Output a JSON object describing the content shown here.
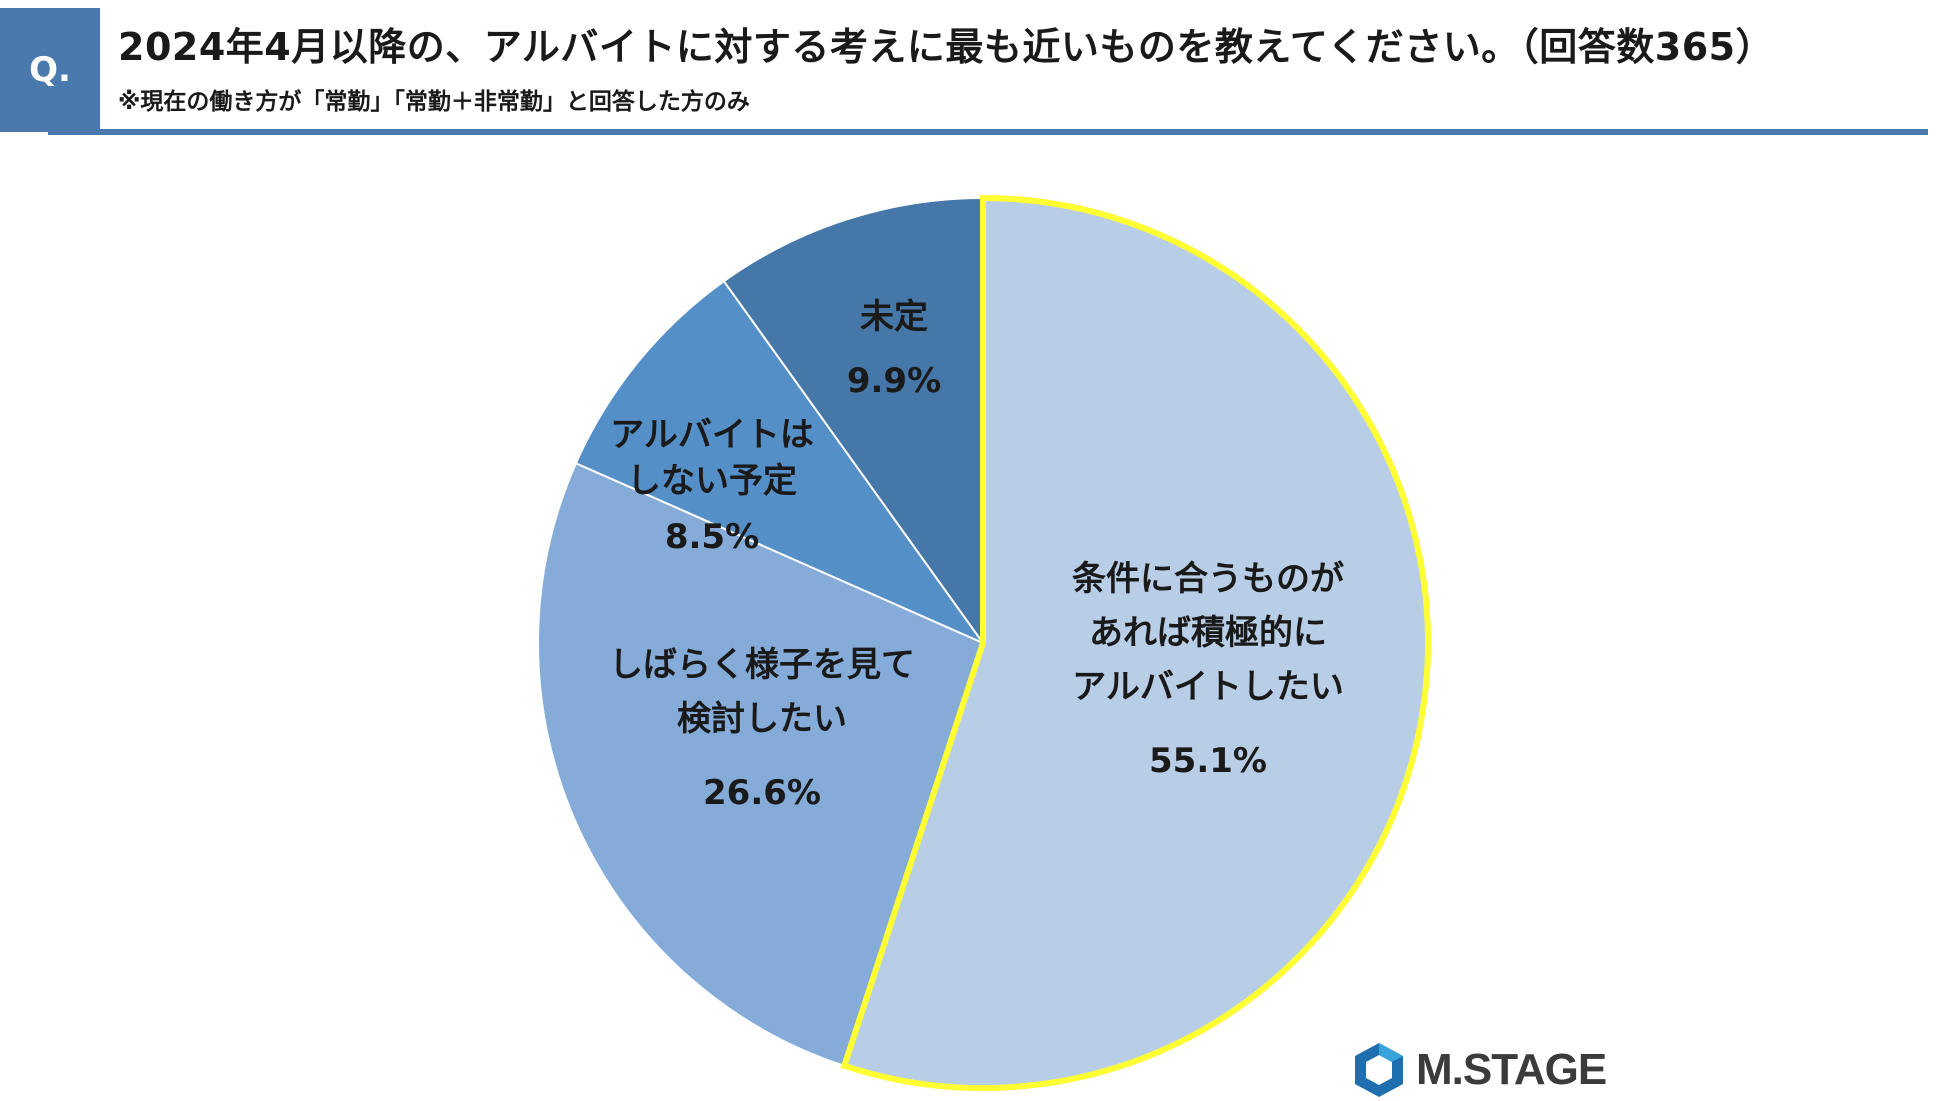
{
  "header": {
    "badge": "Q.",
    "title": "2024年4月以降の、アルバイトに対する考えに最も近いものを教えてください。（回答数365）",
    "subtitle": "※現在の働き方が「常勤」「常勤＋非常勤」と回答した方のみ"
  },
  "colors": {
    "accent": "#4a7aad",
    "highlight_border": "#ffff33"
  },
  "logo": {
    "text": "M.STAGE",
    "icon": "hexagon-logo-icon"
  },
  "chart_data": {
    "type": "pie",
    "title": "2024年4月以降の、アルバイトに対する考えに最も近いものを教えてください。（回答数365）",
    "n": 365,
    "start": "12 o'clock",
    "direction": "clockwise",
    "slices": [
      {
        "label": [
          "条件に合うものが",
          "あれば積極的に",
          "アルバイトしたい"
        ],
        "value": 55.1,
        "value_label": "55.1%",
        "color": "#b8cde6",
        "highlight": true
      },
      {
        "label": [
          "しばらく様子を見て",
          "検討したい"
        ],
        "value": 26.6,
        "value_label": "26.6%",
        "color": "#85acd9",
        "highlight": false
      },
      {
        "label": [
          "アルバイトは",
          "しない予定"
        ],
        "value": 8.5,
        "value_label": "8.5%",
        "color": "#548fc7",
        "highlight": false
      },
      {
        "label": [
          "未定"
        ],
        "value": 9.9,
        "value_label": "9.9%",
        "color": "#4577a8",
        "highlight": false
      }
    ]
  }
}
